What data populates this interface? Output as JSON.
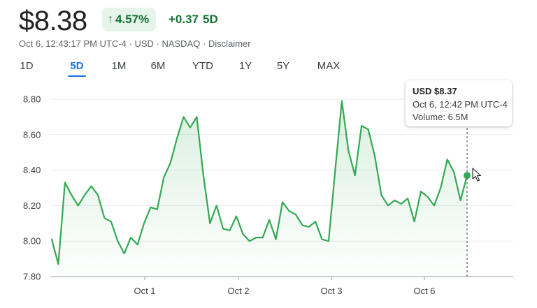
{
  "header": {
    "price": "$8.38",
    "change_pct": "4.57%",
    "change_abs": "+0.37",
    "change_period": "5D",
    "meta": "Oct 6, 12:43:17 PM UTC-4 · USD · NASDAQ · ",
    "disclaimer": "Disclaimer"
  },
  "tabs": [
    {
      "label": "1D",
      "active": false
    },
    {
      "label": "5D",
      "active": true
    },
    {
      "label": "1M",
      "active": false
    },
    {
      "label": "6M",
      "active": false
    },
    {
      "label": "YTD",
      "active": false
    },
    {
      "label": "1Y",
      "active": false
    },
    {
      "label": "5Y",
      "active": false
    },
    {
      "label": "MAX",
      "active": false
    }
  ],
  "tooltip": {
    "price": "USD $8.37",
    "time": "Oct 6, 12:42 PM UTC-4",
    "volume": "Volume: 6.5M"
  },
  "colors": {
    "line": "#34a853",
    "positive": "#137333",
    "badge_bg": "#e6f4ea",
    "accent": "#1a73e8"
  },
  "icons": {
    "arrow": "arrow-up-icon",
    "cursor": "mouse-pointer-icon"
  },
  "chart_data": {
    "type": "area",
    "ylim": [
      7.8,
      8.8
    ],
    "yticks": [
      "8.80",
      "8.60",
      "8.40",
      "8.20",
      "8.00",
      "7.80"
    ],
    "xtick_labels": [
      "Oct 1",
      "Oct 2",
      "Oct 3",
      "Oct 6"
    ],
    "series": [
      {
        "values": [
          8.01,
          7.87,
          8.33,
          8.26,
          8.2,
          8.26,
          8.31,
          8.26,
          8.13,
          8.11,
          8.0,
          7.93,
          8.02,
          7.98,
          8.1,
          8.19,
          8.18,
          8.36,
          8.44,
          8.58,
          8.7,
          8.64,
          8.7,
          8.37,
          8.1,
          8.2,
          8.07,
          8.06,
          8.14,
          8.04,
          8.0,
          8.02,
          8.02,
          8.12,
          8.01,
          8.22,
          8.17,
          8.15,
          8.09,
          8.08,
          8.11,
          8.01,
          8.0,
          8.4,
          8.79,
          8.51,
          8.37,
          8.65,
          8.63,
          8.48,
          8.26,
          8.2,
          8.23,
          8.21,
          8.24,
          8.11,
          8.28,
          8.25,
          8.2,
          8.3,
          8.46,
          8.39,
          8.23,
          8.37
        ]
      }
    ],
    "hover_value": 8.37
  }
}
